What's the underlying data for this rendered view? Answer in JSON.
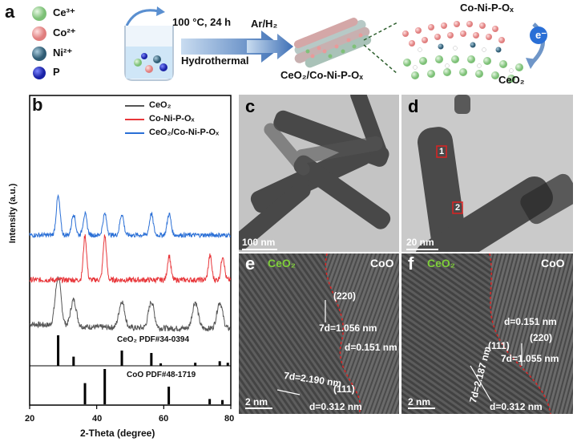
{
  "panel_a": {
    "letter": "a",
    "ions": [
      {
        "label": "Ce³⁺",
        "color": "#9fd49a"
      },
      {
        "label": "Co²⁺",
        "color": "#ef9f9f"
      },
      {
        "label": "Ni²⁺",
        "color": "#4f7c93"
      },
      {
        "label": "P",
        "color": "#2730c9"
      }
    ],
    "condition": "100 °C, 24 h",
    "method": "Hydrothermal",
    "atmosphere": "Ar/H₂",
    "product": "CeO₂/Co-Ni-P-Oₓ",
    "shell_label": "Co-Ni-P-Oₓ",
    "core_label": "CeO₂",
    "electron": "e⁻"
  },
  "panel_b": {
    "letter": "b"
  },
  "chart_data": {
    "type": "line",
    "xlabel": "2-Theta (degree)",
    "ylabel": "Intensity (a.u.)",
    "xlim": [
      20,
      80
    ],
    "xticks": [
      20,
      40,
      60,
      80
    ],
    "grid": false,
    "legend_position": "top-right",
    "series": [
      {
        "name": "CeO₂",
        "color": "#555555",
        "peaks": [
          28.5,
          33.1,
          47.5,
          56.3,
          69.4,
          76.7
        ]
      },
      {
        "name": "Co-Ni-P-Oₓ",
        "color": "#e8363a",
        "peaks": [
          36.5,
          42.4,
          61.6,
          73.8,
          77.6
        ]
      },
      {
        "name": "CeO₂/Co-Ni-P-Oₓ",
        "color": "#2a6fd6",
        "peaks": [
          28.5,
          33.1,
          36.5,
          42.4,
          47.5,
          56.3,
          61.6
        ]
      }
    ],
    "references": [
      {
        "label": "CeO₂  PDF#34-0394",
        "lines": [
          {
            "x": 28.5,
            "h": 1.0
          },
          {
            "x": 33.1,
            "h": 0.3
          },
          {
            "x": 47.5,
            "h": 0.5
          },
          {
            "x": 56.3,
            "h": 0.42
          },
          {
            "x": 59.1,
            "h": 0.08
          },
          {
            "x": 69.4,
            "h": 0.1
          },
          {
            "x": 76.7,
            "h": 0.15
          },
          {
            "x": 79.1,
            "h": 0.1
          }
        ]
      },
      {
        "label": "CoO  PDF#48-1719",
        "lines": [
          {
            "x": 36.5,
            "h": 0.6
          },
          {
            "x": 42.4,
            "h": 1.0
          },
          {
            "x": 61.5,
            "h": 0.5
          },
          {
            "x": 73.7,
            "h": 0.15
          },
          {
            "x": 77.5,
            "h": 0.12
          }
        ]
      }
    ]
  },
  "panel_c": {
    "letter": "c",
    "scale": "100 nm"
  },
  "panel_d": {
    "letter": "d",
    "scale": "20 nm",
    "mark1": "1",
    "mark2": "2"
  },
  "panel_e": {
    "letter": "e",
    "left": "CeO₂",
    "right": "CoO",
    "plane1": "(220)",
    "spacing1": "7d=1.056 nm",
    "d1": "d=0.151 nm",
    "spacing2": "7d=2.190 nm",
    "plane2": "(111)",
    "d2": "d=0.312 nm",
    "scale": "2 nm"
  },
  "panel_f": {
    "letter": "f",
    "left": "CeO₂",
    "right": "CoO",
    "d1": "d=0.151 nm",
    "plane1": "(220)",
    "spacing1": "7d=1.055 nm",
    "plane2": "(111)",
    "spacing2": "7d=2.187 nm",
    "d2": "d=0.312 nm",
    "scale": "2 nm"
  }
}
